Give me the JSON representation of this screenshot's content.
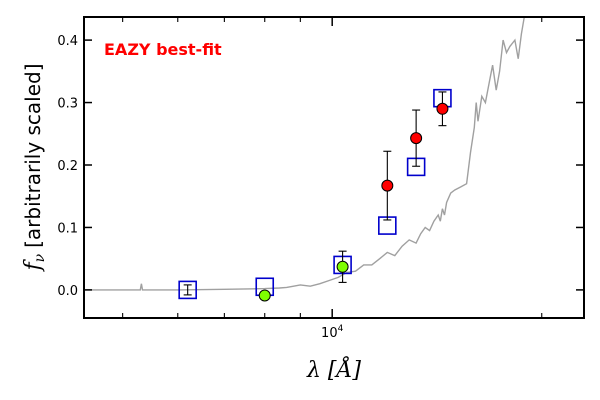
{
  "chart_data": {
    "type": "scatter",
    "annotation": "EAZY best-fit",
    "annotation_color": "#ff0000",
    "xlabel": "λ [Å]",
    "ylabel_symbol": "f",
    "ylabel_sub": "ν",
    "ylabel_text": "[arbitrarily scaled]",
    "x_scale": "log",
    "xlim": [
      4400,
      23000
    ],
    "ylim": [
      -0.045,
      0.437
    ],
    "x_tick_labels": [
      {
        "value": 10000,
        "base": "10",
        "exp": "4"
      }
    ],
    "y_ticks": [
      0.0,
      0.1,
      0.2,
      0.3,
      0.4
    ],
    "y_tick_labels": [
      "0.0",
      "0.1",
      "0.2",
      "0.3",
      "0.4"
    ],
    "grid": false,
    "template": {
      "name": "best-fit template",
      "color": "#a0a0a0",
      "x": [
        4400,
        5000,
        5300,
        5320,
        5340,
        5400,
        6000,
        7000,
        8000,
        8400,
        8600,
        8800,
        9000,
        9300,
        9600,
        9900,
        10200,
        10500,
        10800,
        11100,
        11400,
        11700,
        12000,
        12300,
        12600,
        12900,
        13200,
        13400,
        13600,
        13800,
        14000,
        14200,
        14300,
        14400,
        14500,
        14600,
        14800,
        15000,
        15300,
        15600,
        15800,
        16000,
        16100,
        16200,
        16400,
        16600,
        16800,
        17000,
        17200,
        17400,
        17600,
        17800,
        18000,
        18300,
        18500,
        18700,
        18900
      ],
      "y": [
        0.0,
        0.0,
        0.0,
        0.01,
        0.0,
        0.0,
        0.0,
        0.001,
        0.002,
        0.003,
        0.004,
        0.006,
        0.008,
        0.006,
        0.01,
        0.015,
        0.02,
        0.028,
        0.03,
        0.04,
        0.04,
        0.05,
        0.06,
        0.055,
        0.07,
        0.08,
        0.075,
        0.09,
        0.1,
        0.095,
        0.11,
        0.12,
        0.11,
        0.13,
        0.12,
        0.14,
        0.155,
        0.16,
        0.165,
        0.17,
        0.22,
        0.26,
        0.3,
        0.27,
        0.31,
        0.3,
        0.33,
        0.36,
        0.32,
        0.35,
        0.4,
        0.38,
        0.39,
        0.4,
        0.37,
        0.41,
        0.44
      ]
    },
    "series": [
      {
        "marker": "square",
        "color": "#0000cc",
        "points": [
          {
            "x": 6200,
            "y": 0.0
          },
          {
            "x": 8000,
            "y": 0.005
          },
          {
            "x": 10350,
            "y": 0.04
          },
          {
            "x": 12000,
            "y": 0.103
          },
          {
            "x": 13200,
            "y": 0.197
          },
          {
            "x": 14400,
            "y": 0.307
          }
        ]
      },
      {
        "marker": "circle",
        "color": "#ff0000",
        "points": [
          {
            "x": 6200,
            "y": null,
            "err": 0.008
          },
          {
            "x": 8000,
            "y": -0.009,
            "err": 0.0
          },
          {
            "x": 10350,
            "y": 0.037,
            "err": 0.025
          },
          {
            "x": 12000,
            "y": 0.167,
            "err": 0.055
          },
          {
            "x": 13200,
            "y": 0.243,
            "err": 0.045
          },
          {
            "x": 14400,
            "y": 0.29,
            "err": 0.027
          }
        ],
        "fills": [
          "#ff0000",
          "#7fff00",
          "#7fff00",
          "#ff0000",
          "#ff0000",
          "#ff0000"
        ]
      }
    ]
  }
}
